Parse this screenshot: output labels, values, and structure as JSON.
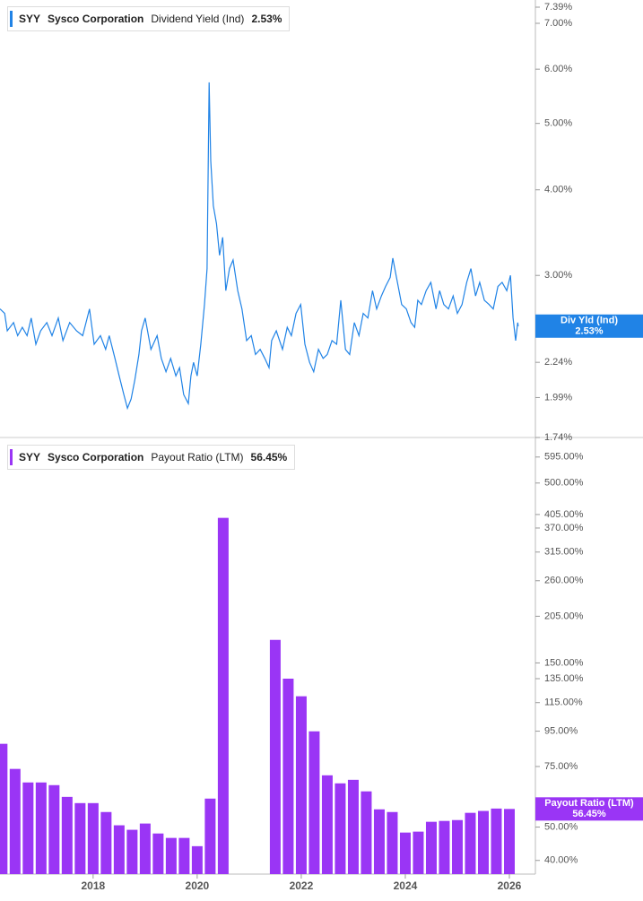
{
  "chart_data": [
    {
      "type": "line",
      "log": true,
      "ticker": "SYY",
      "company": "Sysco Corporation",
      "series": [
        {
          "name": "Dividend Yield (Ind)",
          "color": "#2083e6",
          "x": [
            2016.21,
            2016.3,
            2016.35,
            2016.47,
            2016.55,
            2016.64,
            2016.73,
            2016.81,
            2016.9,
            2016.99,
            2017.11,
            2017.21,
            2017.33,
            2017.42,
            2017.55,
            2017.68,
            2017.8,
            2017.93,
            2018.02,
            2018.14,
            2018.24,
            2018.31,
            2018.42,
            2018.5,
            2018.59,
            2018.66,
            2018.73,
            2018.8,
            2018.88,
            2018.93,
            2019.0,
            2019.11,
            2019.23,
            2019.31,
            2019.4,
            2019.49,
            2019.59,
            2019.66,
            2019.74,
            2019.83,
            2019.88,
            2019.93,
            2020.0,
            2020.07,
            2020.14,
            2020.19,
            2020.23,
            2020.26,
            2020.31,
            2020.37,
            2020.43,
            2020.49,
            2020.55,
            2020.62,
            2020.69,
            2020.78,
            2020.86,
            2020.95,
            2021.04,
            2021.12,
            2021.21,
            2021.3,
            2021.38,
            2021.43,
            2021.52,
            2021.64,
            2021.73,
            2021.81,
            2021.9,
            2021.99,
            2022.07,
            2022.16,
            2022.24,
            2022.33,
            2022.42,
            2022.5,
            2022.59,
            2022.68,
            2022.76,
            2022.85,
            2022.93,
            2023.02,
            2023.11,
            2023.19,
            2023.28,
            2023.37,
            2023.45,
            2023.54,
            2023.62,
            2023.71,
            2023.76,
            2023.83,
            2023.93,
            2024.02,
            2024.11,
            2024.18,
            2024.24,
            2024.31,
            2024.4,
            2024.49,
            2024.59,
            2024.66,
            2024.74,
            2024.83,
            2024.92,
            2025.0,
            2025.09,
            2025.18,
            2025.26,
            2025.35,
            2025.43,
            2025.52,
            2025.61,
            2025.69,
            2025.78,
            2025.86,
            2025.95,
            2026.02,
            2026.07,
            2026.12,
            2026.16,
            2026.17
          ],
          "values": [
            2.68,
            2.64,
            2.49,
            2.56,
            2.45,
            2.52,
            2.45,
            2.6,
            2.38,
            2.49,
            2.56,
            2.45,
            2.6,
            2.41,
            2.56,
            2.49,
            2.45,
            2.68,
            2.38,
            2.45,
            2.34,
            2.45,
            2.27,
            2.14,
            2.01,
            1.92,
            1.98,
            2.11,
            2.3,
            2.49,
            2.6,
            2.34,
            2.45,
            2.27,
            2.17,
            2.27,
            2.14,
            2.2,
            2.01,
            1.95,
            2.14,
            2.24,
            2.14,
            2.38,
            2.72,
            3.07,
            5.74,
            4.41,
            3.79,
            3.57,
            3.21,
            3.41,
            2.85,
            3.07,
            3.16,
            2.85,
            2.68,
            2.41,
            2.45,
            2.3,
            2.34,
            2.27,
            2.2,
            2.41,
            2.49,
            2.34,
            2.52,
            2.45,
            2.64,
            2.72,
            2.38,
            2.24,
            2.17,
            2.34,
            2.27,
            2.3,
            2.41,
            2.38,
            2.76,
            2.34,
            2.3,
            2.56,
            2.45,
            2.64,
            2.6,
            2.85,
            2.68,
            2.8,
            2.89,
            2.98,
            3.18,
            2.98,
            2.72,
            2.68,
            2.56,
            2.52,
            2.76,
            2.72,
            2.85,
            2.93,
            2.68,
            2.85,
            2.72,
            2.68,
            2.8,
            2.64,
            2.72,
            2.93,
            3.07,
            2.8,
            2.93,
            2.76,
            2.72,
            2.68,
            2.89,
            2.93,
            2.85,
            3.0,
            2.6,
            2.41,
            2.56,
            2.53
          ]
        }
      ],
      "marker": {
        "label": "Div Yld (Ind)",
        "value": 2.53,
        "value_label": "2.53%"
      },
      "xlim": [
        2016.21,
        2026.5
      ],
      "ylim": [
        1.74,
        7.39
      ],
      "yticks": [
        {
          "value": 1.74,
          "label": "1.74%"
        },
        {
          "value": 1.99,
          "label": "1.99%"
        },
        {
          "value": 2.24,
          "label": "2.24%"
        },
        {
          "value": 3.0,
          "label": "3.00%"
        },
        {
          "value": 4.0,
          "label": "4.00%"
        },
        {
          "value": 5.0,
          "label": "5.00%"
        },
        {
          "value": 6.0,
          "label": "6.00%"
        },
        {
          "value": 7.0,
          "label": "7.00%"
        },
        {
          "value": 7.39,
          "label": "7.39%"
        }
      ]
    },
    {
      "type": "bar",
      "log": true,
      "ticker": "SYY",
      "company": "Sysco Corporation",
      "series": [
        {
          "name": "Payout Ratio (LTM)",
          "color": "#9a35f5",
          "x": [
            2016.25,
            2016.5,
            2016.75,
            2017.0,
            2017.25,
            2017.5,
            2017.75,
            2018.0,
            2018.25,
            2018.5,
            2018.75,
            2019.0,
            2019.25,
            2019.5,
            2019.75,
            2020.0,
            2020.25,
            2020.5,
            2021.5,
            2021.75,
            2022.0,
            2022.25,
            2022.5,
            2022.75,
            2023.0,
            2023.25,
            2023.5,
            2023.75,
            2024.0,
            2024.25,
            2024.5,
            2024.75,
            2025.0,
            2025.25,
            2025.5,
            2025.75,
            2026.0
          ],
          "values": [
            87.3,
            73.8,
            67.4,
            67.4,
            66.2,
            61.2,
            58.7,
            58.7,
            55.3,
            50.6,
            49.1,
            51.2,
            47.9,
            46.5,
            46.5,
            44.0,
            60.5,
            396,
            175,
            135,
            120,
            94.9,
            70.7,
            67.0,
            68.6,
            63.5,
            56.3,
            55.3,
            48.2,
            48.5,
            51.8,
            52.1,
            52.4,
            55.0,
            55.7,
            56.6,
            56.45
          ]
        }
      ],
      "marker": {
        "label": "Payout Ratio (LTM)",
        "value": 56.45,
        "value_label": "56.45%"
      },
      "xlim": [
        2016.21,
        2026.5
      ],
      "xticks": [
        2018,
        2020,
        2022,
        2024,
        2026
      ],
      "ylim": [
        36.5,
        670
      ],
      "yticks": [
        {
          "value": 40,
          "label": "40.00%"
        },
        {
          "value": 50,
          "label": "50.00%"
        },
        {
          "value": 75,
          "label": "75.00%"
        },
        {
          "value": 95,
          "label": "95.00%"
        },
        {
          "value": 115,
          "label": "115.00%"
        },
        {
          "value": 135,
          "label": "135.00%"
        },
        {
          "value": 150,
          "label": "150.00%"
        },
        {
          "value": 205,
          "label": "205.00%"
        },
        {
          "value": 260,
          "label": "260.00%"
        },
        {
          "value": 315,
          "label": "315.00%"
        },
        {
          "value": 370,
          "label": "370.00%"
        },
        {
          "value": 405,
          "label": "405.00%"
        },
        {
          "value": 500,
          "label": "500.00%"
        },
        {
          "value": 595,
          "label": "595.00%"
        }
      ]
    }
  ]
}
